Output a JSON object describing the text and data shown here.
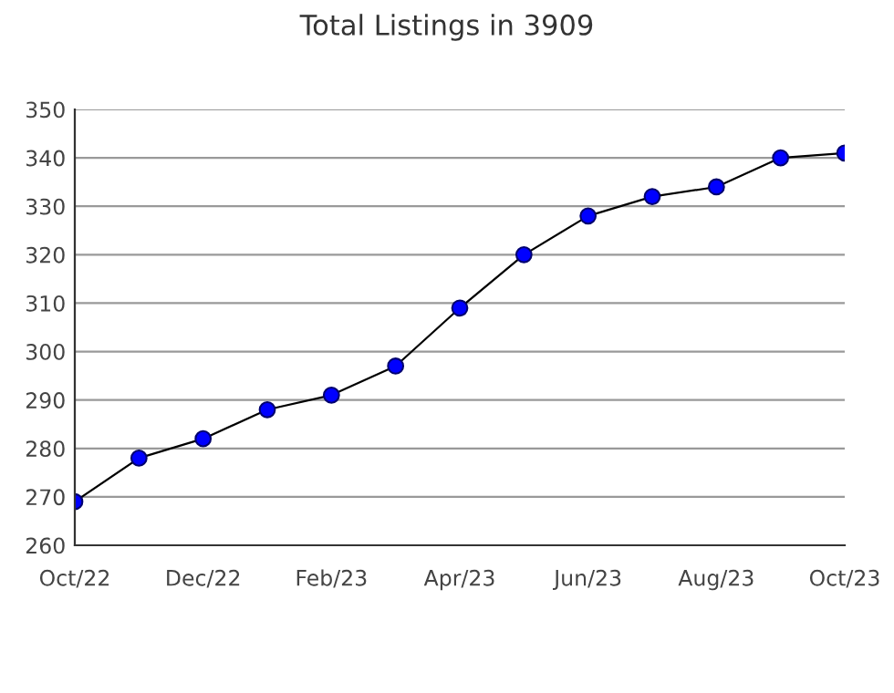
{
  "chart_data": {
    "type": "line",
    "title": "Total Listings in 3909",
    "categories": [
      "Oct/22",
      null,
      "Dec/22",
      null,
      "Feb/23",
      null,
      "Apr/23",
      null,
      "Jun/23",
      null,
      "Aug/23",
      null,
      "Oct/23"
    ],
    "series": [
      {
        "color": "#0000ff",
        "values": [
          269,
          278,
          282,
          288,
          291,
          297,
          309,
          320,
          328,
          332,
          334,
          340,
          341
        ]
      }
    ],
    "ylim": [
      260,
      350
    ],
    "yticks": [
      260,
      270,
      280,
      290,
      300,
      310,
      320,
      330,
      340,
      350
    ],
    "grid": "y",
    "marker": "circle",
    "line_style": "solid",
    "legend": false
  }
}
